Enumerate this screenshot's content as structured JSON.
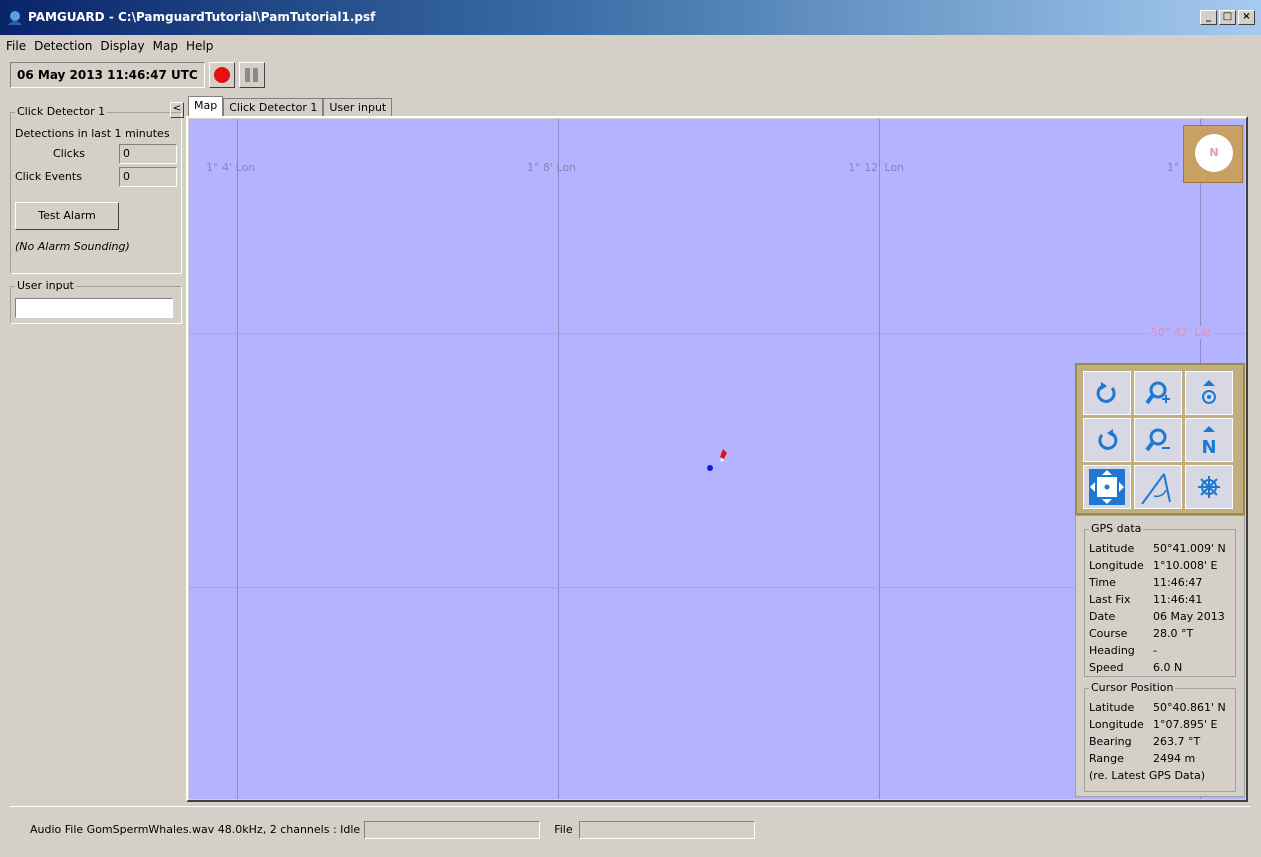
{
  "window": {
    "title": "PAMGUARD - C:\\PamguardTutorial\\PamTutorial1.psf",
    "min_label": "_",
    "max_label": "□",
    "close_label": "×"
  },
  "menu": [
    "File",
    "Detection",
    "Display",
    "Map",
    "Help"
  ],
  "toolbar": {
    "clock": "06 May 2013 11:46:47 UTC"
  },
  "click_detector": {
    "title": "Click Detector 1",
    "detections_label": "Detections in last 1 minutes",
    "clicks_label": "Clicks",
    "clicks_value": "0",
    "events_label": "Click Events",
    "events_value": "0",
    "alarm_button": "Test Alarm",
    "alarm_status": "(No Alarm Sounding)"
  },
  "user_input": {
    "title": "User input",
    "value": ""
  },
  "tabs": {
    "collapse": "<",
    "items": [
      "Map",
      "Click Detector 1",
      "User input"
    ]
  },
  "map": {
    "lon_labels": [
      "1° 4' Lon",
      "1° 8' Lon",
      "1° 12' Lon",
      "1°"
    ],
    "lat_label": "50° 42' Lat",
    "compass_label": "N"
  },
  "gps": {
    "title": "GPS data",
    "rows": [
      {
        "k": "Latitude",
        "v": "50°41.009' N"
      },
      {
        "k": "Longitude",
        "v": "1°10.008' E"
      },
      {
        "k": "Time",
        "v": "11:46:47"
      },
      {
        "k": "Last Fix",
        "v": "11:46:41"
      },
      {
        "k": "Date",
        "v": "06 May 2013"
      },
      {
        "k": "Course",
        "v": "28.0 °T"
      },
      {
        "k": "Heading",
        "v": "-"
      },
      {
        "k": "Speed",
        "v": "6.0 N"
      }
    ]
  },
  "cursor": {
    "title": "Cursor Position",
    "rows": [
      {
        "k": "Latitude",
        "v": "50°40.861' N"
      },
      {
        "k": "Longitude",
        "v": "1°07.895' E"
      },
      {
        "k": "Bearing",
        "v": "263.7 °T"
      },
      {
        "k": "Range",
        "v": "2494 m"
      }
    ],
    "note": "(re. Latest GPS Data)"
  },
  "status": {
    "audio": "Audio File GomSpermWhales.wav 48.0kHz, 2 channels : Idle",
    "file_label": "File"
  },
  "colors": {
    "map_bg": "#b3b3ff",
    "record": "#e61010",
    "accent": "#1e78d2"
  }
}
